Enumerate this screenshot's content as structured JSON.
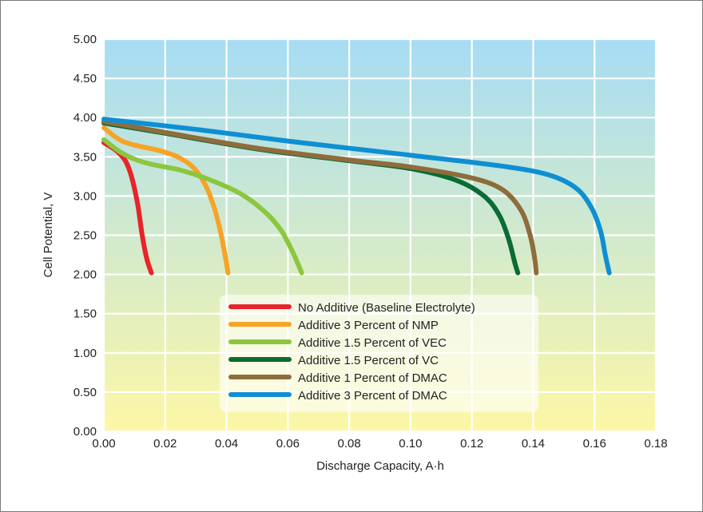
{
  "chart_data": {
    "type": "line",
    "title": "",
    "xlabel": "Discharge Capacity, A·h",
    "ylabel": "Cell Potential, V",
    "xlim": [
      0,
      0.18
    ],
    "ylim": [
      0,
      5
    ],
    "x_ticks": [
      "0.00",
      "0.02",
      "0.04",
      "0.06",
      "0.08",
      "0.10",
      "0.12",
      "0.14",
      "0.16",
      "0.18"
    ],
    "y_ticks": [
      "0.00",
      "0.50",
      "1.00",
      "1.50",
      "2.00",
      "2.50",
      "3.00",
      "3.50",
      "4.00",
      "4.50",
      "5.00"
    ],
    "grid": true,
    "legend_position": "bottom-center",
    "background_gradient": [
      "#a6dcf4",
      "#fdf7a6"
    ],
    "series": [
      {
        "name": "No Additive (Baseline Electrolyte)",
        "color": "#e8232a",
        "points": [
          [
            0,
            3.68
          ],
          [
            0.004,
            3.58
          ],
          [
            0.007,
            3.45
          ],
          [
            0.009,
            3.25
          ],
          [
            0.011,
            2.9
          ],
          [
            0.0125,
            2.5
          ],
          [
            0.014,
            2.2
          ],
          [
            0.0155,
            2.02
          ]
        ]
      },
      {
        "name": "Additive 3 Percent of NMP",
        "color": "#f7a325",
        "points": [
          [
            0,
            3.87
          ],
          [
            0.005,
            3.72
          ],
          [
            0.01,
            3.65
          ],
          [
            0.018,
            3.58
          ],
          [
            0.024,
            3.5
          ],
          [
            0.029,
            3.37
          ],
          [
            0.033,
            3.15
          ],
          [
            0.036,
            2.85
          ],
          [
            0.038,
            2.55
          ],
          [
            0.0395,
            2.25
          ],
          [
            0.0405,
            2.02
          ]
        ]
      },
      {
        "name": "Additive 1.5 Percent of VEC",
        "color": "#8cc63f",
        "points": [
          [
            0,
            3.72
          ],
          [
            0.005,
            3.57
          ],
          [
            0.01,
            3.47
          ],
          [
            0.016,
            3.4
          ],
          [
            0.025,
            3.33
          ],
          [
            0.035,
            3.2
          ],
          [
            0.045,
            3.02
          ],
          [
            0.053,
            2.78
          ],
          [
            0.058,
            2.55
          ],
          [
            0.062,
            2.25
          ],
          [
            0.0645,
            2.02
          ]
        ]
      },
      {
        "name": "Additive 1.5 Percent of VC",
        "color": "#0b6b35",
        "points": [
          [
            0,
            3.93
          ],
          [
            0.02,
            3.8
          ],
          [
            0.05,
            3.6
          ],
          [
            0.08,
            3.45
          ],
          [
            0.1,
            3.35
          ],
          [
            0.115,
            3.2
          ],
          [
            0.124,
            3.0
          ],
          [
            0.129,
            2.75
          ],
          [
            0.132,
            2.45
          ],
          [
            0.134,
            2.15
          ],
          [
            0.135,
            2.02
          ]
        ]
      },
      {
        "name": "Additive 1 Percent of DMAC",
        "color": "#8f6c3c",
        "points": [
          [
            0,
            3.95
          ],
          [
            0.02,
            3.81
          ],
          [
            0.05,
            3.61
          ],
          [
            0.08,
            3.46
          ],
          [
            0.1,
            3.37
          ],
          [
            0.12,
            3.23
          ],
          [
            0.13,
            3.08
          ],
          [
            0.136,
            2.82
          ],
          [
            0.139,
            2.5
          ],
          [
            0.1405,
            2.2
          ],
          [
            0.141,
            2.02
          ]
        ]
      },
      {
        "name": "Additive 3 Percent of DMAC",
        "color": "#0f8fd3",
        "points": [
          [
            0,
            3.98
          ],
          [
            0.03,
            3.85
          ],
          [
            0.06,
            3.7
          ],
          [
            0.1,
            3.52
          ],
          [
            0.13,
            3.38
          ],
          [
            0.145,
            3.27
          ],
          [
            0.154,
            3.1
          ],
          [
            0.159,
            2.85
          ],
          [
            0.162,
            2.55
          ],
          [
            0.1635,
            2.25
          ],
          [
            0.1648,
            2.02
          ]
        ]
      }
    ]
  }
}
